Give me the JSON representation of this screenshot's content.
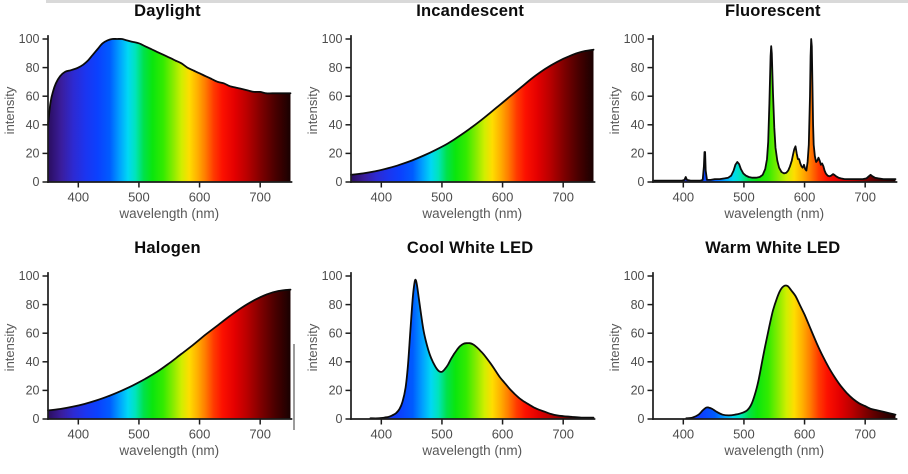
{
  "page": {
    "background": "#ffffff",
    "top_strip_color": "#d9d9d9",
    "artifact_line_color": "#9c9c9c",
    "title_color": "#0c0c0c",
    "tick_label_color": "#4d4d4d",
    "axis_label_color": "#585858",
    "axis_line_color": "#1c1c1c",
    "curve_stroke_color": "#0b0b0b"
  },
  "spectrum_gradient": [
    {
      "wl": 350,
      "color": "#2a0d5e"
    },
    {
      "wl": 372,
      "color": "#3a1d9c"
    },
    {
      "wl": 392,
      "color": "#2d2ad2"
    },
    {
      "wl": 412,
      "color": "#1b35f0"
    },
    {
      "wl": 432,
      "color": "#0b41fe"
    },
    {
      "wl": 452,
      "color": "#005cff"
    },
    {
      "wl": 468,
      "color": "#00a0ff"
    },
    {
      "wl": 482,
      "color": "#00d8f4"
    },
    {
      "wl": 494,
      "color": "#00e4bc"
    },
    {
      "wl": 508,
      "color": "#00e24a"
    },
    {
      "wl": 522,
      "color": "#0ae60e"
    },
    {
      "wl": 540,
      "color": "#33eb00"
    },
    {
      "wl": 556,
      "color": "#84ec00"
    },
    {
      "wl": 570,
      "color": "#cfee00"
    },
    {
      "wl": 583,
      "color": "#fedd00"
    },
    {
      "wl": 597,
      "color": "#ffae00"
    },
    {
      "wl": 610,
      "color": "#ff7a00"
    },
    {
      "wl": 623,
      "color": "#ff3c00"
    },
    {
      "wl": 638,
      "color": "#fc1000"
    },
    {
      "wl": 658,
      "color": "#e30000"
    },
    {
      "wl": 678,
      "color": "#ba0000"
    },
    {
      "wl": 702,
      "color": "#7d0000"
    },
    {
      "wl": 724,
      "color": "#4b0000"
    },
    {
      "wl": 750,
      "color": "#190101"
    }
  ],
  "chart_data": [
    {
      "type": "area",
      "title": "Daylight",
      "xlabel": "wavelength (nm)",
      "ylabel": "intensity",
      "xlim": [
        350,
        750
      ],
      "ylim": [
        0,
        100
      ],
      "x_ticks": [
        400,
        500,
        600,
        700
      ],
      "y_ticks": [
        0,
        20,
        40,
        60,
        80,
        100
      ],
      "grid": false,
      "legend": false,
      "curve": "smooth",
      "fill": "spectrum",
      "points": [
        [
          350,
          40
        ],
        [
          354,
          55
        ],
        [
          358,
          63
        ],
        [
          363,
          69
        ],
        [
          370,
          74
        ],
        [
          378,
          77
        ],
        [
          386,
          78
        ],
        [
          394,
          79
        ],
        [
          400,
          80
        ],
        [
          408,
          82
        ],
        [
          416,
          85
        ],
        [
          424,
          89
        ],
        [
          432,
          93
        ],
        [
          440,
          97
        ],
        [
          448,
          99
        ],
        [
          456,
          100
        ],
        [
          464,
          100
        ],
        [
          472,
          100
        ],
        [
          480,
          99
        ],
        [
          490,
          98
        ],
        [
          500,
          97
        ],
        [
          510,
          95
        ],
        [
          520,
          93
        ],
        [
          530,
          91
        ],
        [
          540,
          89
        ],
        [
          550,
          87
        ],
        [
          560,
          85
        ],
        [
          570,
          83
        ],
        [
          580,
          80
        ],
        [
          590,
          78
        ],
        [
          600,
          76
        ],
        [
          610,
          74
        ],
        [
          620,
          72
        ],
        [
          630,
          70
        ],
        [
          640,
          69
        ],
        [
          650,
          67
        ],
        [
          660,
          66
        ],
        [
          670,
          65
        ],
        [
          680,
          64
        ],
        [
          690,
          63
        ],
        [
          700,
          63
        ],
        [
          710,
          62
        ],
        [
          720,
          62
        ],
        [
          735,
          62
        ],
        [
          750,
          62
        ]
      ]
    },
    {
      "type": "area",
      "title": "Incandescent",
      "xlabel": "wavelength (nm)",
      "ylabel": "intensity",
      "xlim": [
        350,
        750
      ],
      "ylim": [
        0,
        100
      ],
      "x_ticks": [
        400,
        500,
        600,
        700
      ],
      "y_ticks": [
        0,
        20,
        40,
        60,
        80,
        100
      ],
      "grid": false,
      "legend": false,
      "curve": "smooth",
      "fill": "spectrum",
      "points": [
        [
          350,
          5
        ],
        [
          370,
          6
        ],
        [
          390,
          7.5
        ],
        [
          410,
          9.5
        ],
        [
          430,
          12
        ],
        [
          450,
          15
        ],
        [
          470,
          18.5
        ],
        [
          490,
          22.5
        ],
        [
          510,
          27
        ],
        [
          530,
          32.5
        ],
        [
          550,
          38.5
        ],
        [
          570,
          45
        ],
        [
          590,
          52
        ],
        [
          610,
          59
        ],
        [
          630,
          66
        ],
        [
          650,
          73
        ],
        [
          670,
          79
        ],
        [
          690,
          84
        ],
        [
          710,
          88
        ],
        [
          730,
          91
        ],
        [
          750,
          92.5
        ]
      ]
    },
    {
      "type": "area",
      "title": "Fluorescent",
      "xlabel": "wavelength (nm)",
      "ylabel": "intensity",
      "xlim": [
        350,
        750
      ],
      "ylim": [
        0,
        100
      ],
      "x_ticks": [
        400,
        500,
        600,
        700
      ],
      "y_ticks": [
        0,
        20,
        40,
        60,
        80,
        100
      ],
      "grid": false,
      "legend": false,
      "curve": "spiky",
      "fill": "spectrum",
      "points": [
        [
          350,
          1
        ],
        [
          360,
          1
        ],
        [
          370,
          1
        ],
        [
          380,
          1
        ],
        [
          390,
          1
        ],
        [
          398,
          1
        ],
        [
          402,
          1.5
        ],
        [
          404,
          3.5
        ],
        [
          406,
          1.5
        ],
        [
          412,
          1
        ],
        [
          420,
          1
        ],
        [
          428,
          1
        ],
        [
          432,
          1.5
        ],
        [
          434,
          11
        ],
        [
          435,
          21
        ],
        [
          436,
          21
        ],
        [
          437,
          8
        ],
        [
          439,
          1.5
        ],
        [
          445,
          1.5
        ],
        [
          452,
          2
        ],
        [
          460,
          2
        ],
        [
          468,
          2.5
        ],
        [
          474,
          3
        ],
        [
          479,
          4.5
        ],
        [
          483,
          8
        ],
        [
          486,
          12
        ],
        [
          489,
          14
        ],
        [
          492,
          12.5
        ],
        [
          495,
          9
        ],
        [
          499,
          6
        ],
        [
          503,
          4.5
        ],
        [
          508,
          3.5
        ],
        [
          514,
          3
        ],
        [
          520,
          3
        ],
        [
          526,
          3.5
        ],
        [
          531,
          5
        ],
        [
          535,
          9
        ],
        [
          538,
          16
        ],
        [
          540,
          28
        ],
        [
          542,
          55
        ],
        [
          544,
          88
        ],
        [
          545,
          95
        ],
        [
          546,
          90
        ],
        [
          548,
          62
        ],
        [
          550,
          38
        ],
        [
          552,
          24
        ],
        [
          555,
          15
        ],
        [
          558,
          10
        ],
        [
          562,
          7
        ],
        [
          566,
          6
        ],
        [
          570,
          6.5
        ],
        [
          573,
          8
        ],
        [
          576,
          11
        ],
        [
          579,
          15
        ],
        [
          581,
          19
        ],
        [
          583,
          23
        ],
        [
          585,
          25
        ],
        [
          587,
          20
        ],
        [
          589,
          16
        ],
        [
          591,
          16
        ],
        [
          593,
          13
        ],
        [
          595,
          11
        ],
        [
          597,
          10
        ],
        [
          599,
          12
        ],
        [
          601,
          9
        ],
        [
          603,
          8
        ],
        [
          605,
          14
        ],
        [
          607,
          26
        ],
        [
          609,
          60
        ],
        [
          610,
          88
        ],
        [
          611,
          100
        ],
        [
          612,
          95
        ],
        [
          613,
          70
        ],
        [
          614,
          40
        ],
        [
          615,
          26
        ],
        [
          617,
          18
        ],
        [
          619,
          14
        ],
        [
          621,
          15
        ],
        [
          623,
          17
        ],
        [
          625,
          15
        ],
        [
          627,
          12
        ],
        [
          629,
          13
        ],
        [
          631,
          11
        ],
        [
          633,
          8
        ],
        [
          635,
          6
        ],
        [
          638,
          4.5
        ],
        [
          641,
          4
        ],
        [
          644,
          4.5
        ],
        [
          647,
          5.5
        ],
        [
          649,
          5
        ],
        [
          652,
          4
        ],
        [
          656,
          3
        ],
        [
          660,
          2.5
        ],
        [
          666,
          2
        ],
        [
          672,
          2
        ],
        [
          678,
          2
        ],
        [
          684,
          2
        ],
        [
          690,
          2
        ],
        [
          696,
          2
        ],
        [
          702,
          2.5
        ],
        [
          706,
          4
        ],
        [
          709,
          5
        ],
        [
          712,
          4
        ],
        [
          716,
          3
        ],
        [
          722,
          2.5
        ],
        [
          730,
          2
        ],
        [
          740,
          2
        ],
        [
          750,
          2
        ]
      ]
    },
    {
      "type": "area",
      "title": "Halogen",
      "xlabel": "wavelength (nm)",
      "ylabel": "intensity",
      "xlim": [
        350,
        750
      ],
      "ylim": [
        0,
        100
      ],
      "x_ticks": [
        400,
        500,
        600,
        700
      ],
      "y_ticks": [
        0,
        20,
        40,
        60,
        80,
        100
      ],
      "grid": false,
      "legend": false,
      "curve": "smooth",
      "fill": "spectrum",
      "points": [
        [
          350,
          6
        ],
        [
          370,
          7
        ],
        [
          390,
          8.5
        ],
        [
          410,
          10.5
        ],
        [
          430,
          13
        ],
        [
          450,
          16
        ],
        [
          470,
          19.5
        ],
        [
          490,
          23.5
        ],
        [
          510,
          28
        ],
        [
          530,
          33
        ],
        [
          550,
          39
        ],
        [
          570,
          45.5
        ],
        [
          590,
          52
        ],
        [
          610,
          59
        ],
        [
          630,
          65.5
        ],
        [
          650,
          72
        ],
        [
          670,
          78
        ],
        [
          690,
          83
        ],
        [
          710,
          87
        ],
        [
          730,
          89.5
        ],
        [
          750,
          90.5
        ]
      ]
    },
    {
      "type": "area",
      "title": "Cool White LED",
      "xlabel": "wavelength (nm)",
      "ylabel": "intensity",
      "xlim": [
        350,
        750
      ],
      "ylim": [
        0,
        100
      ],
      "x_ticks": [
        400,
        500,
        600,
        700
      ],
      "y_ticks": [
        0,
        20,
        40,
        60,
        80,
        100
      ],
      "grid": false,
      "legend": false,
      "curve": "smooth",
      "fill": "spectrum",
      "points": [
        [
          382,
          0.5
        ],
        [
          395,
          0.5
        ],
        [
          405,
          1
        ],
        [
          412,
          1.5
        ],
        [
          418,
          2.5
        ],
        [
          424,
          4
        ],
        [
          430,
          7
        ],
        [
          435,
          12
        ],
        [
          440,
          22
        ],
        [
          444,
          38
        ],
        [
          448,
          62
        ],
        [
          452,
          85
        ],
        [
          455,
          96
        ],
        [
          457,
          97
        ],
        [
          459,
          93
        ],
        [
          462,
          84
        ],
        [
          466,
          72
        ],
        [
          470,
          61
        ],
        [
          475,
          52
        ],
        [
          480,
          45
        ],
        [
          485,
          40
        ],
        [
          490,
          36
        ],
        [
          495,
          33.5
        ],
        [
          500,
          33
        ],
        [
          505,
          35
        ],
        [
          510,
          38
        ],
        [
          515,
          42
        ],
        [
          520,
          45.5
        ],
        [
          525,
          48.5
        ],
        [
          530,
          51
        ],
        [
          535,
          52.5
        ],
        [
          540,
          53
        ],
        [
          546,
          53
        ],
        [
          552,
          52
        ],
        [
          558,
          50
        ],
        [
          565,
          47
        ],
        [
          572,
          43.5
        ],
        [
          580,
          39
        ],
        [
          588,
          34
        ],
        [
          596,
          29
        ],
        [
          604,
          25
        ],
        [
          612,
          21
        ],
        [
          620,
          17.5
        ],
        [
          628,
          14.5
        ],
        [
          636,
          12
        ],
        [
          644,
          10
        ],
        [
          652,
          8
        ],
        [
          660,
          6.5
        ],
        [
          670,
          5
        ],
        [
          680,
          3.5
        ],
        [
          690,
          2.5
        ],
        [
          700,
          2
        ],
        [
          715,
          1.5
        ],
        [
          730,
          1
        ],
        [
          750,
          1
        ]
      ]
    },
    {
      "type": "area",
      "title": "Warm White LED",
      "xlabel": "wavelength (nm)",
      "ylabel": "intensity",
      "xlim": [
        350,
        750
      ],
      "ylim": [
        0,
        100
      ],
      "x_ticks": [
        400,
        500,
        600,
        700
      ],
      "y_ticks": [
        0,
        20,
        40,
        60,
        80,
        100
      ],
      "grid": false,
      "legend": false,
      "curve": "smooth",
      "fill": "spectrum",
      "points": [
        [
          405,
          0.5
        ],
        [
          415,
          1
        ],
        [
          425,
          3
        ],
        [
          432,
          6
        ],
        [
          438,
          8
        ],
        [
          442,
          8
        ],
        [
          448,
          7
        ],
        [
          455,
          5
        ],
        [
          465,
          3
        ],
        [
          475,
          2.5
        ],
        [
          485,
          3
        ],
        [
          495,
          4
        ],
        [
          505,
          6
        ],
        [
          512,
          10
        ],
        [
          518,
          17
        ],
        [
          524,
          27
        ],
        [
          530,
          40
        ],
        [
          536,
          53
        ],
        [
          542,
          65
        ],
        [
          548,
          76
        ],
        [
          554,
          84
        ],
        [
          560,
          90
        ],
        [
          566,
          93
        ],
        [
          572,
          93
        ],
        [
          578,
          90
        ],
        [
          585,
          86
        ],
        [
          592,
          80
        ],
        [
          600,
          73
        ],
        [
          610,
          63
        ],
        [
          620,
          53
        ],
        [
          630,
          44
        ],
        [
          640,
          36
        ],
        [
          650,
          29
        ],
        [
          660,
          23
        ],
        [
          670,
          18
        ],
        [
          680,
          14
        ],
        [
          690,
          11
        ],
        [
          700,
          9
        ],
        [
          710,
          7
        ],
        [
          720,
          6
        ],
        [
          730,
          5
        ],
        [
          740,
          4
        ],
        [
          750,
          3
        ]
      ]
    }
  ]
}
